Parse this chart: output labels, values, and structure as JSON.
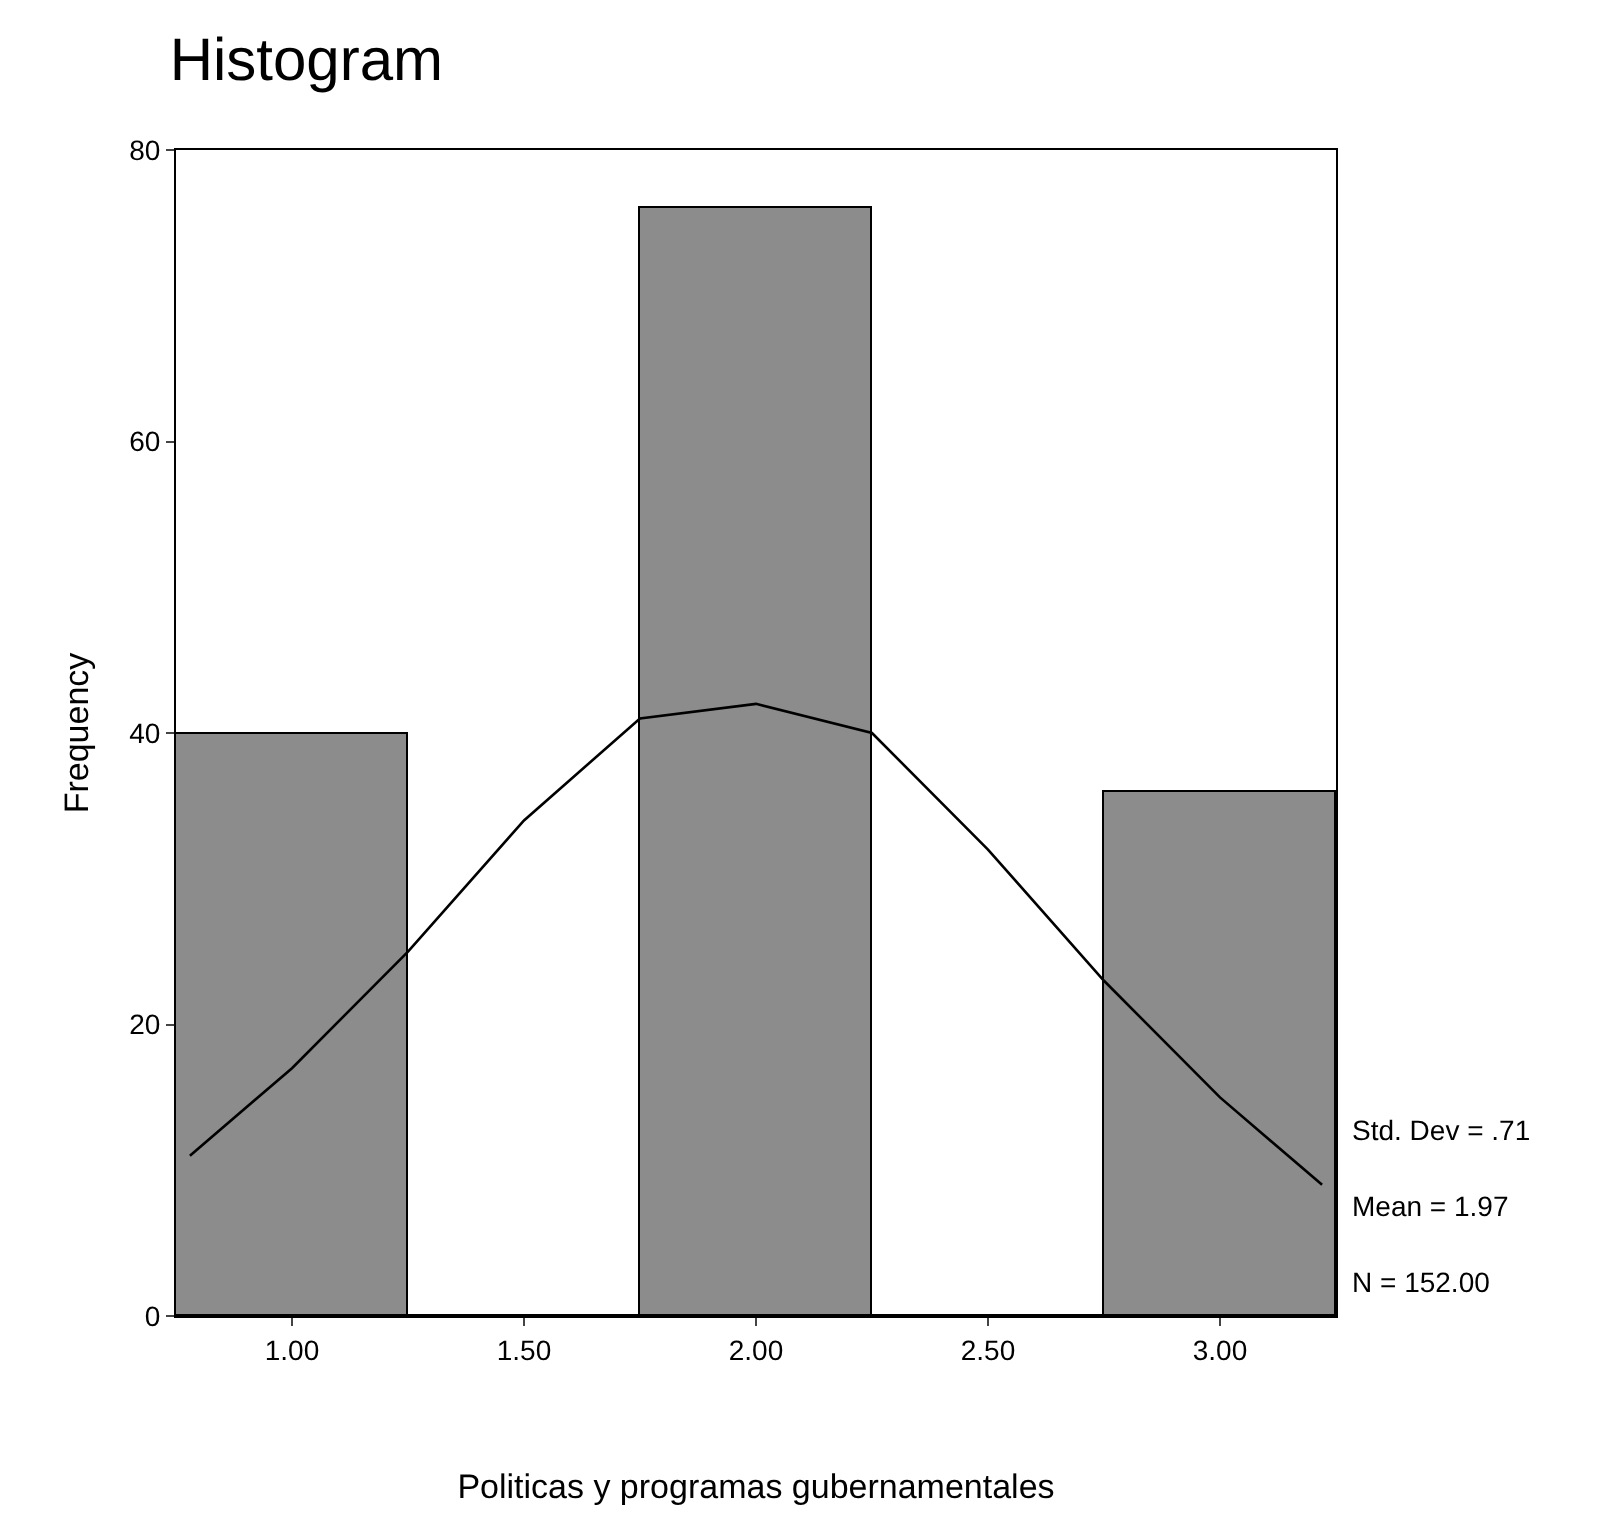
{
  "chart_data": {
    "type": "histogram",
    "title": "Histogram",
    "xlabel": "Politicas y programas gubernamentales",
    "ylabel": "Frequency",
    "bins": [
      0.75,
      1.25,
      1.75,
      2.25,
      2.75,
      3.25
    ],
    "values": [
      40,
      0,
      76,
      0,
      36
    ],
    "color": "#8c8c8c",
    "series": [
      {
        "type": "line",
        "color": "#000000",
        "x": [
          0.78,
          1.0,
          1.25,
          1.5,
          1.75,
          2.0,
          2.25,
          2.5,
          2.75,
          3.0,
          3.22
        ],
        "values": [
          11,
          17,
          25,
          34,
          41,
          42,
          40,
          32,
          23,
          15,
          9
        ]
      }
    ],
    "xlim": [
      0.75,
      3.25
    ],
    "xticks": [
      {
        "value": 1,
        "label": "1.00"
      },
      {
        "value": 1.5,
        "label": "1.50"
      },
      {
        "value": 2,
        "label": "2.00"
      },
      {
        "value": 2.5,
        "label": "2.50"
      },
      {
        "value": 3,
        "label": "3.00"
      }
    ],
    "ylim": [
      0,
      80
    ],
    "yticks": [
      0,
      20,
      40,
      60,
      80
    ],
    "annotations": [
      "Std. Dev = .71",
      "Mean = 1.97",
      "N = 152.00"
    ]
  }
}
